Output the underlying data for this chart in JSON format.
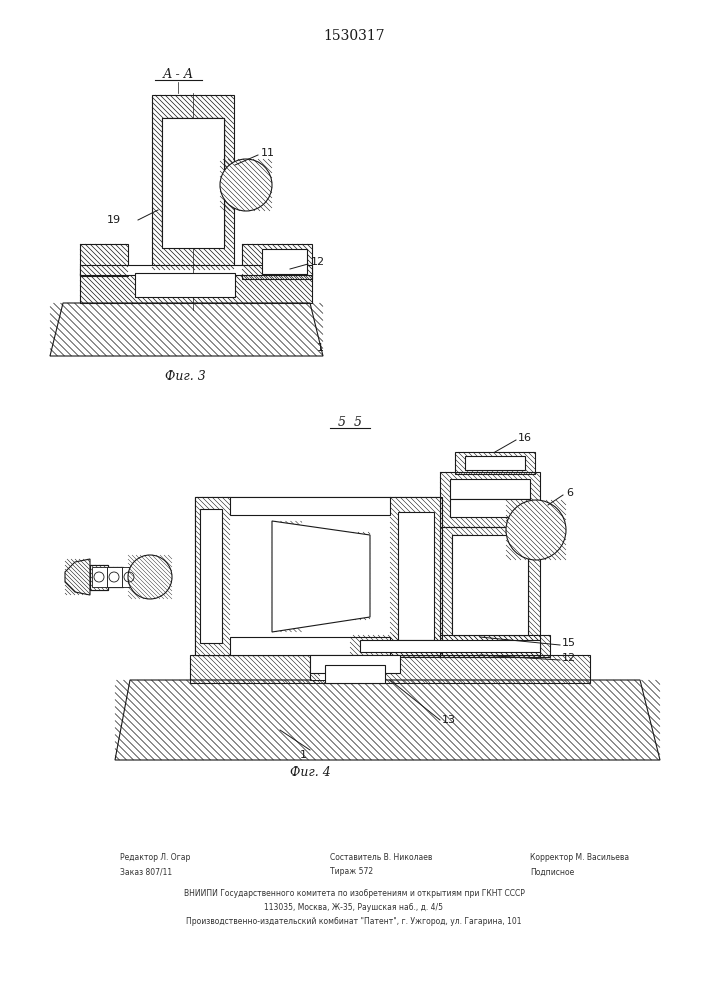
{
  "title": "1530317",
  "bg_color": "#ffffff",
  "line_color": "#1a1a1a",
  "fig3_label": "А - А",
  "fig3_caption": "Фиг. 3",
  "fig4_section": "5  5",
  "fig4_caption": "Фиг. 4",
  "footer_col1": [
    "Редактор Л. Огар",
    "Заказ 807/11"
  ],
  "footer_col2": [
    "Составитель В. Николаев",
    "Тираж 572"
  ],
  "footer_col3": [
    "Корректор М. Васильева",
    "Подписное"
  ],
  "footer_line3": "ВНИИПИ Государственного комитета по изобретениям и открытиям при ГКНТ СССР",
  "footer_line4": "113035, Москва, Ж-35, Раушская наб., д. 4/5",
  "footer_line5": "Производственно-издательский комбинат \"Патент\", г. Ужгород, ул. Гагарина, 101"
}
